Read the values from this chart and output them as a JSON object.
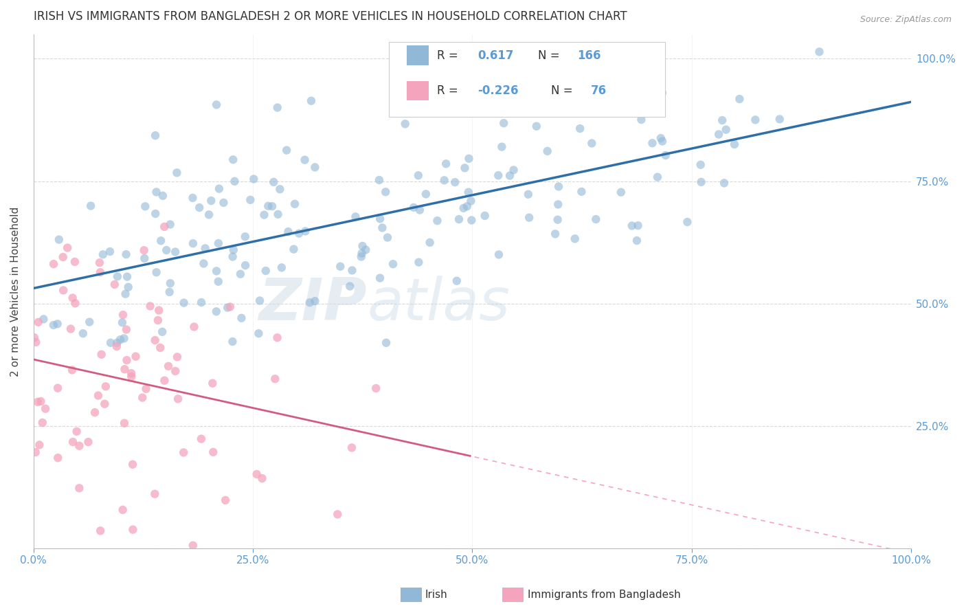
{
  "title": "IRISH VS IMMIGRANTS FROM BANGLADESH 2 OR MORE VEHICLES IN HOUSEHOLD CORRELATION CHART",
  "source": "Source: ZipAtlas.com",
  "ylabel": "2 or more Vehicles in Household",
  "legend_irish_r": "0.617",
  "legend_irish_n": "166",
  "legend_bangladesh_r": "-0.226",
  "legend_bangladesh_n": "76",
  "irish_color": "#92b8d8",
  "bangladesh_color": "#f4a4bc",
  "irish_line_color": "#2e6fa8",
  "bangladesh_line_solid_color": "#d45b80",
  "bangladesh_line_dash_color": "#f4a4bc",
  "watermark_zip": "ZIP",
  "watermark_atlas": "atlas",
  "watermark_color_zip": "#c8d8ea",
  "watermark_color_atlas": "#b8cce0",
  "tick_label_color": "#5b9bd5",
  "background_color": "#ffffff",
  "title_fontsize": 12,
  "irish_r": 0.617,
  "bangladesh_r": -0.226,
  "n_irish": 166,
  "n_bangladesh": 76
}
